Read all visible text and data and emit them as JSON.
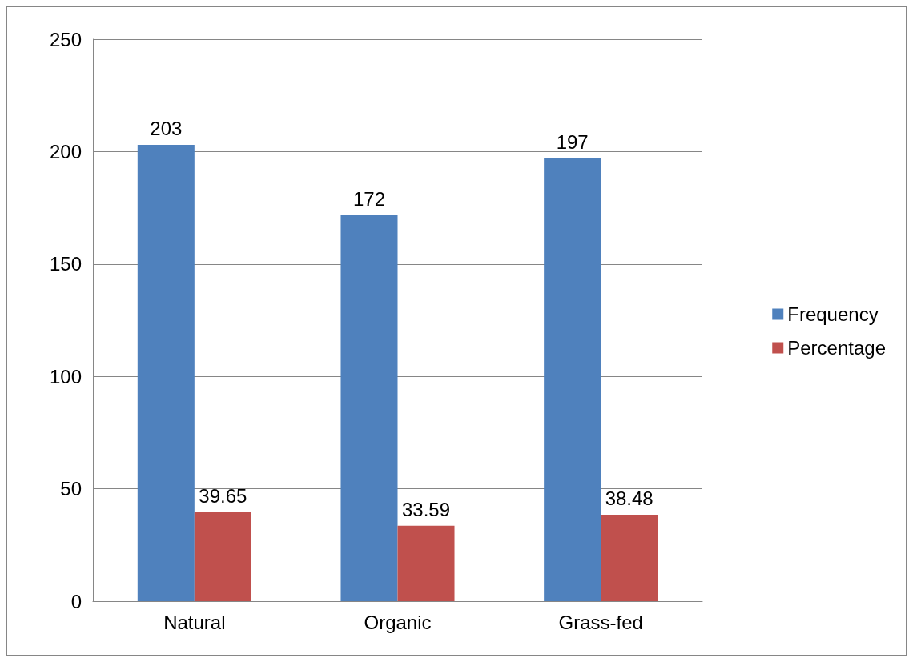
{
  "chart_data": {
    "type": "bar",
    "categories": [
      "Natural",
      "Organic",
      "Grass-fed"
    ],
    "series": [
      {
        "name": "Frequency",
        "color": "#4f81bd",
        "values": [
          203,
          172,
          197
        ]
      },
      {
        "name": "Percentage",
        "color": "#c0504d",
        "values": [
          39.65,
          33.59,
          38.48
        ]
      }
    ],
    "ylim": [
      0,
      250
    ],
    "yticks": [
      0,
      50,
      100,
      150,
      200,
      250
    ],
    "grid": "y",
    "legend": "right",
    "data_labels": true
  }
}
